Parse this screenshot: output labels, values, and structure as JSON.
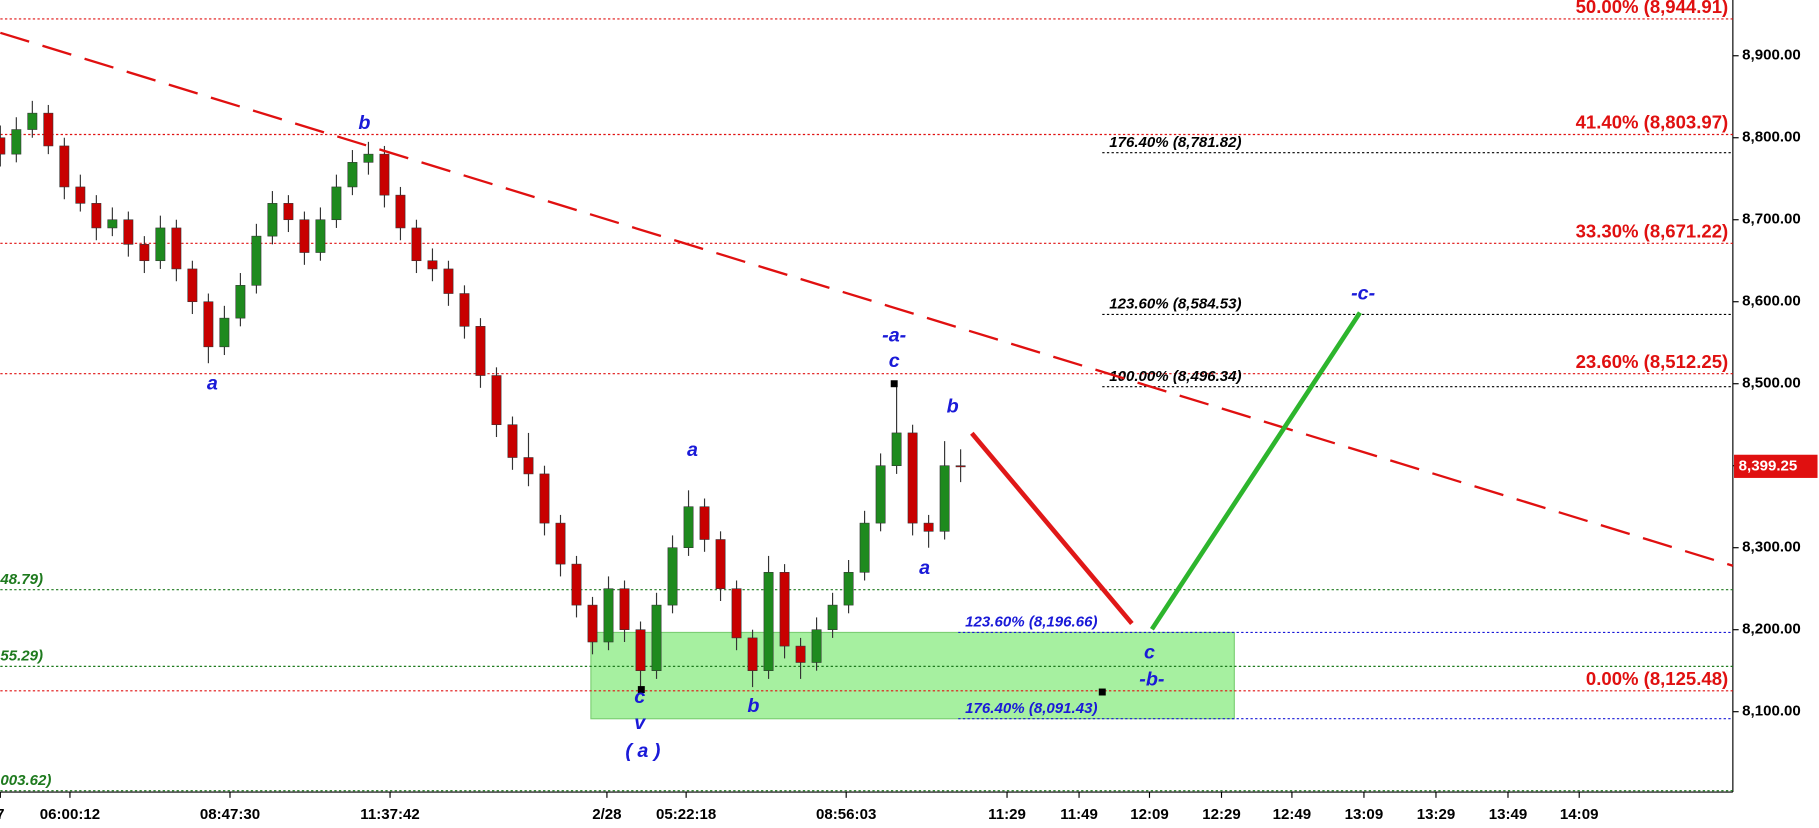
{
  "chart_data": {
    "type": "candlestick",
    "up_color": "#1e8a1e",
    "down_color": "#c80000",
    "xlim": [
      0,
      216.5
    ],
    "ylim": [
      8002,
      8968
    ],
    "xticks": [
      {
        "value": 0,
        "label": "7"
      },
      {
        "value": 8.7,
        "label": "06:00:12"
      },
      {
        "value": 28.7,
        "label": "08:47:30"
      },
      {
        "value": 48.7,
        "label": "11:37:42"
      },
      {
        "value": 75.8,
        "label": "2/28"
      },
      {
        "value": 85.7,
        "label": "05:22:18"
      },
      {
        "value": 105.7,
        "label": "08:56:03"
      },
      {
        "value": 125.8,
        "label": "11:29"
      },
      {
        "value": 134.8,
        "label": "11:49"
      },
      {
        "value": 143.6,
        "label": "12:09"
      },
      {
        "value": 152.6,
        "label": "12:29"
      },
      {
        "value": 161.4,
        "label": "12:49"
      },
      {
        "value": 170.4,
        "label": "13:09"
      },
      {
        "value": 179.4,
        "label": "13:29"
      },
      {
        "value": 188.4,
        "label": "13:49"
      },
      {
        "value": 197.3,
        "label": "14:09"
      }
    ],
    "yticks": [
      {
        "value": 8100,
        "label": "8,100.00"
      },
      {
        "value": 8200,
        "label": "8,200.00"
      },
      {
        "value": 8300,
        "label": "8,300.00"
      },
      {
        "value": 8400,
        "label": "8,400.00"
      },
      {
        "value": 8500,
        "label": "8,500.00"
      },
      {
        "value": 8600,
        "label": "8,600.00"
      },
      {
        "value": 8700,
        "label": "8,700.00"
      },
      {
        "value": 8800,
        "label": "8,800.00"
      },
      {
        "value": 8900,
        "label": "8,900.00"
      }
    ],
    "x": [
      0,
      2,
      4,
      6,
      8,
      10,
      12,
      14,
      16,
      18,
      20,
      22,
      24,
      26,
      28,
      30,
      32,
      34,
      36,
      38,
      40,
      42,
      44,
      46,
      48,
      50,
      52,
      54,
      56,
      58,
      60,
      62,
      64,
      66,
      68,
      70,
      72,
      74,
      76,
      78,
      80,
      82,
      84,
      86,
      88,
      90,
      92,
      94,
      96,
      98,
      100,
      102,
      104,
      106,
      108,
      110,
      112,
      114,
      116,
      118,
      120
    ],
    "ohlc": [
      [
        8800,
        8815,
        8765,
        8780
      ],
      [
        8780,
        8825,
        8770,
        8810
      ],
      [
        8810,
        8845,
        8800,
        8830
      ],
      [
        8830,
        8840,
        8780,
        8790
      ],
      [
        8790,
        8800,
        8725,
        8740
      ],
      [
        8740,
        8755,
        8710,
        8720
      ],
      [
        8720,
        8730,
        8675,
        8690
      ],
      [
        8690,
        8715,
        8680,
        8700
      ],
      [
        8700,
        8710,
        8655,
        8670
      ],
      [
        8670,
        8680,
        8635,
        8650
      ],
      [
        8650,
        8705,
        8640,
        8690
      ],
      [
        8690,
        8700,
        8625,
        8640
      ],
      [
        8640,
        8650,
        8585,
        8600
      ],
      [
        8600,
        8610,
        8525,
        8545
      ],
      [
        8545,
        8595,
        8535,
        8580
      ],
      [
        8580,
        8635,
        8570,
        8620
      ],
      [
        8620,
        8695,
        8610,
        8680
      ],
      [
        8680,
        8735,
        8670,
        8720
      ],
      [
        8720,
        8730,
        8685,
        8700
      ],
      [
        8700,
        8710,
        8645,
        8660
      ],
      [
        8660,
        8715,
        8650,
        8700
      ],
      [
        8700,
        8755,
        8690,
        8740
      ],
      [
        8740,
        8785,
        8730,
        8770
      ],
      [
        8770,
        8795,
        8755,
        8780
      ],
      [
        8780,
        8790,
        8715,
        8730
      ],
      [
        8730,
        8740,
        8675,
        8690
      ],
      [
        8690,
        8700,
        8635,
        8650
      ],
      [
        8650,
        8665,
        8625,
        8640
      ],
      [
        8640,
        8650,
        8595,
        8610
      ],
      [
        8610,
        8620,
        8555,
        8570
      ],
      [
        8570,
        8580,
        8495,
        8510
      ],
      [
        8510,
        8520,
        8435,
        8450
      ],
      [
        8450,
        8460,
        8395,
        8410
      ],
      [
        8410,
        8440,
        8375,
        8390
      ],
      [
        8390,
        8400,
        8315,
        8330
      ],
      [
        8330,
        8340,
        8265,
        8280
      ],
      [
        8280,
        8290,
        8215,
        8230
      ],
      [
        8230,
        8240,
        8170,
        8185
      ],
      [
        8185,
        8265,
        8175,
        8250
      ],
      [
        8250,
        8260,
        8185,
        8200
      ],
      [
        8200,
        8210,
        8125,
        8150
      ],
      [
        8150,
        8245,
        8140,
        8230
      ],
      [
        8230,
        8315,
        8220,
        8300
      ],
      [
        8300,
        8370,
        8290,
        8350
      ],
      [
        8350,
        8360,
        8295,
        8310
      ],
      [
        8310,
        8320,
        8235,
        8250
      ],
      [
        8250,
        8260,
        8175,
        8190
      ],
      [
        8190,
        8200,
        8130,
        8150
      ],
      [
        8150,
        8290,
        8140,
        8270
      ],
      [
        8270,
        8280,
        8165,
        8180
      ],
      [
        8180,
        8190,
        8140,
        8160
      ],
      [
        8160,
        8215,
        8150,
        8200
      ],
      [
        8200,
        8245,
        8190,
        8230
      ],
      [
        8230,
        8285,
        8220,
        8270
      ],
      [
        8270,
        8345,
        8260,
        8330
      ],
      [
        8330,
        8415,
        8320,
        8400
      ],
      [
        8400,
        8496,
        8390,
        8440
      ],
      [
        8440,
        8450,
        8315,
        8330
      ],
      [
        8330,
        8340,
        8300,
        8320
      ],
      [
        8320,
        8430,
        8310,
        8400
      ],
      [
        8400,
        8420,
        8380,
        8399.25
      ]
    ],
    "retracement_levels": {
      "color": "#e01010",
      "levels": [
        {
          "label": "50.00% (8,944.91)",
          "value": 8944.91
        },
        {
          "label": "41.40% (8,803.97)",
          "value": 8803.97
        },
        {
          "label": "33.30% (8,671.22)",
          "value": 8671.22
        },
        {
          "label": "23.60% (8,512.25)",
          "value": 8512.25
        },
        {
          "label": "0.00% (8,125.48)",
          "value": 8125.48
        }
      ]
    },
    "extension_levels_a": {
      "color": "#000000",
      "x_start": 137.7,
      "levels": [
        {
          "label": "176.40% (8,781.82)",
          "value": 8781.82
        },
        {
          "label": "123.60% (8,584.53)",
          "value": 8584.53
        },
        {
          "label": "100.00% (8,496.34)",
          "value": 8496.34
        }
      ]
    },
    "extension_levels_b": {
      "color": "#1a1ad8",
      "x_start": 119.7,
      "levels": [
        {
          "label": "123.60% (8,196.66)",
          "value": 8196.66
        },
        {
          "label": "176.40% (8,091.43)",
          "value": 8091.43
        }
      ]
    },
    "prior_levels": {
      "color": "#1e7a1e",
      "levels": [
        {
          "label": "48.79)",
          "value": 8248.79
        },
        {
          "label": "55.29)",
          "value": 8155.29
        },
        {
          "label": "003.62)",
          "value": 8003.62
        }
      ]
    },
    "trendline": {
      "color": "#e01010",
      "x": [
        0,
        216.5
      ],
      "y": [
        8928,
        8278
      ]
    },
    "projections": [
      {
        "color": "#e01818",
        "x": [
          121.4,
          141.4
        ],
        "y": [
          8439.6,
          8207.6
        ]
      },
      {
        "color": "#2db52d",
        "x": [
          143.9,
          169.9
        ],
        "y": [
          8200.6,
          8586.7
        ]
      }
    ],
    "target_zone": {
      "color": "#a6f0a0",
      "x": [
        73.8,
        154.2
      ],
      "y": [
        8196.66,
        8091.43
      ]
    },
    "markers": [
      [
        80.1,
        8127
      ],
      [
        111.7,
        8500
      ],
      [
        137.7,
        8124
      ]
    ],
    "annotations": [
      {
        "text": "a",
        "x": 26.5,
        "y": 8499
      },
      {
        "text": "b",
        "x": 45.5,
        "y": 8817
      },
      {
        "text": "a",
        "x": 86.5,
        "y": 8418
      },
      {
        "text": "c",
        "x": 79.9,
        "y": 8117
      },
      {
        "text": "v",
        "x": 79.9,
        "y": 8085
      },
      {
        "text": "( a )",
        "x": 80.3,
        "y": 8051
      },
      {
        "text": "b",
        "x": 94.1,
        "y": 8106
      },
      {
        "text": "a",
        "x": 115.5,
        "y": 8274
      },
      {
        "text": "b",
        "x": 119,
        "y": 8471
      },
      {
        "text": "c",
        "x": 111.7,
        "y": 8527
      },
      {
        "text": "-a-",
        "x": 111.7,
        "y": 8558
      },
      {
        "text": "c",
        "x": 143.6,
        "y": 8171
      },
      {
        "text": "-b-",
        "x": 143.9,
        "y": 8138
      },
      {
        "text": "-c-",
        "x": 170.3,
        "y": 8609
      }
    ],
    "last_price": {
      "value": 8399.25,
      "value_label": "8,399.25",
      "color": "#e01010"
    }
  }
}
